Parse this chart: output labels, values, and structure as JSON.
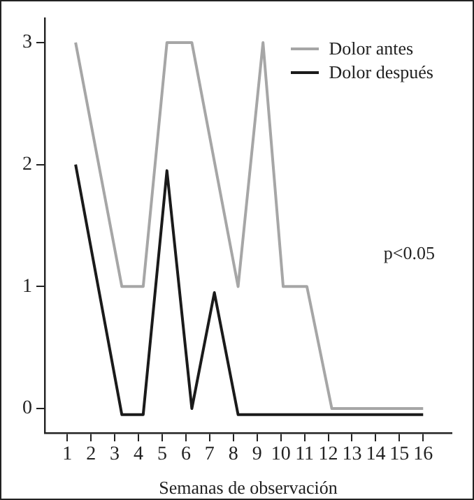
{
  "chart_data": {
    "type": "line",
    "xlabel": "Semanas de observación",
    "annotations": [
      "p<0.05"
    ],
    "legend": "top right",
    "marker": "none",
    "xlim": [
      0.05,
      17.2
    ],
    "xticks": [
      1,
      2,
      3,
      4,
      5,
      6,
      7,
      8,
      9,
      10,
      11,
      12,
      13,
      14,
      15,
      16
    ],
    "ylim": [
      -0.2,
      3.2
    ],
    "yticks": [
      0,
      1,
      2,
      3
    ],
    "series": [
      {
        "name": "Dolor antes",
        "color": "#a6a6a6",
        "x": [
          1.35,
          3.3,
          4.2,
          5.2,
          6.25,
          8.2,
          9.25,
          10.1,
          11.1,
          12.15,
          16
        ],
        "values": [
          3,
          1,
          1,
          3,
          3,
          1,
          3,
          1,
          1,
          0,
          0
        ]
      },
      {
        "name": "Dolor después",
        "color": "#1a1a1a",
        "x": [
          1.35,
          3.3,
          4.2,
          5.2,
          6.25,
          7.2,
          8.2,
          16
        ],
        "values": [
          2,
          -0.05,
          -0.05,
          1.95,
          0,
          0.95,
          -0.05,
          -0.05
        ]
      }
    ]
  }
}
